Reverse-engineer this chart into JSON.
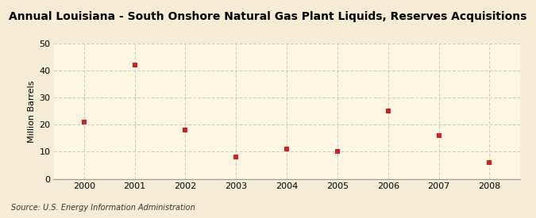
{
  "title": "Annual Louisiana - South Onshore Natural Gas Plant Liquids, Reserves Acquisitions",
  "ylabel": "Million Barrels",
  "source": "Source: U.S. Energy Information Administration",
  "years": [
    2000,
    2001,
    2002,
    2003,
    2004,
    2005,
    2006,
    2007,
    2008
  ],
  "values": [
    21,
    42,
    18,
    8,
    11,
    10,
    25,
    16,
    6
  ],
  "xlim": [
    1999.4,
    2008.6
  ],
  "ylim": [
    0,
    50
  ],
  "yticks": [
    0,
    10,
    20,
    30,
    40,
    50
  ],
  "xticks": [
    2000,
    2001,
    2002,
    2003,
    2004,
    2005,
    2006,
    2007,
    2008
  ],
  "background_color": "#f5ecd5",
  "plot_bg_color": "#fdf6e3",
  "marker_color": "#cc2222",
  "grid_color": "#bbbbbb",
  "title_fontsize": 10,
  "label_fontsize": 8,
  "tick_fontsize": 8,
  "source_fontsize": 7
}
